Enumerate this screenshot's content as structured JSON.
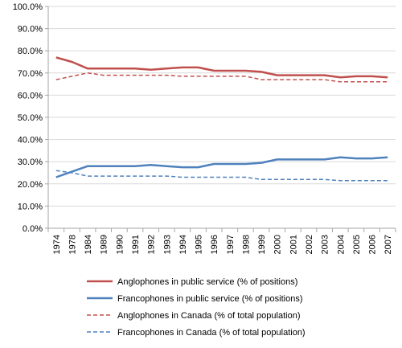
{
  "chart_data": {
    "type": "line",
    "title": "",
    "xlabel": "",
    "ylabel": "",
    "ylim": [
      0,
      100
    ],
    "yticks": [
      "0.0%",
      "10.0%",
      "20.0%",
      "30.0%",
      "40.0%",
      "50.0%",
      "60.0%",
      "70.0%",
      "80.0%",
      "90.0%",
      "100.0%"
    ],
    "grid": true,
    "legend_position": "bottom",
    "categories": [
      "1974",
      "1978",
      "1984",
      "1989",
      "1990",
      "1991",
      "1992",
      "1993",
      "1994",
      "1995",
      "1996",
      "1997",
      "1998",
      "1999",
      "2000",
      "2001",
      "2002",
      "2003",
      "2004",
      "2005",
      "2006",
      "2007"
    ],
    "series": [
      {
        "name": "Anglophones in public service (% of positions)",
        "color": "#c0504d",
        "dash": "solid",
        "values": [
          77,
          75,
          72,
          72,
          72,
          72,
          71.5,
          72,
          72.5,
          72.5,
          71,
          71,
          71,
          70.5,
          69,
          69,
          69,
          69,
          68,
          68.5,
          68.5,
          68
        ]
      },
      {
        "name": "Francophones in public service (% of positions)",
        "color": "#4f81bd",
        "dash": "solid",
        "values": [
          23,
          25.5,
          28,
          28,
          28,
          28,
          28.5,
          28,
          27.5,
          27.5,
          29,
          29,
          29,
          29.5,
          31,
          31,
          31,
          31,
          32,
          31.5,
          31.5,
          32
        ]
      },
      {
        "name": "Anglophones in Canada (% of total population)",
        "color": "#c0504d",
        "dash": "dashed",
        "values": [
          67,
          68.5,
          70,
          69,
          69,
          69,
          69,
          69,
          68.5,
          68.5,
          68.5,
          68.5,
          68.5,
          67,
          67,
          67,
          67,
          67,
          66,
          66,
          66,
          66
        ]
      },
      {
        "name": "Francophones in Canada (% of total population)",
        "color": "#4f81bd",
        "dash": "dashed",
        "values": [
          26,
          25,
          23.5,
          23.5,
          23.5,
          23.5,
          23.5,
          23.5,
          23,
          23,
          23,
          23,
          23,
          22,
          22,
          22,
          22,
          22,
          21.5,
          21.5,
          21.5,
          21.5
        ]
      }
    ]
  }
}
